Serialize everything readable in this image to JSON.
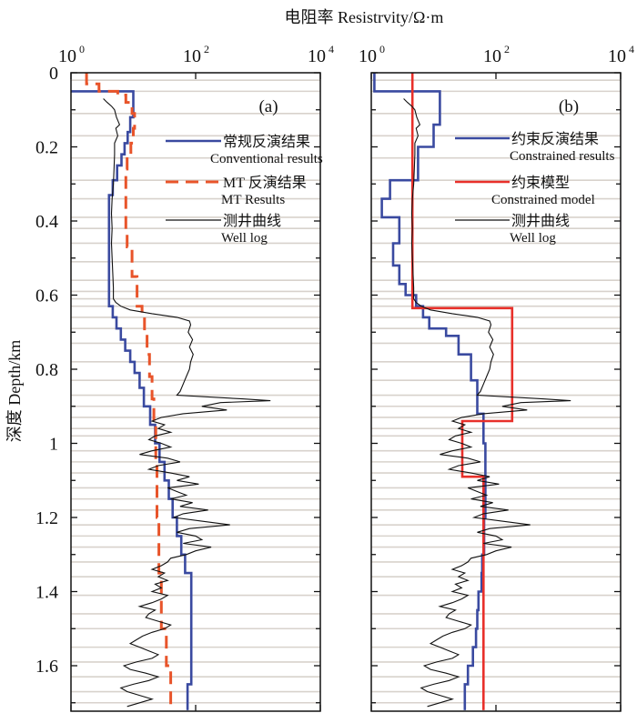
{
  "chart_data": [
    {
      "type": "line",
      "panel_label": "(a)",
      "title": "电阻率 Resistrvity/Ω·m",
      "xlabel": "电阻率 Resistrvity/Ω·m",
      "ylabel": "深度 Depth/km",
      "xscale": "log",
      "xlim": [
        1,
        10000
      ],
      "ylim": [
        0,
        1.72
      ],
      "y_inverted": true,
      "x_ticks": [
        {
          "label": "10",
          "exp": "0",
          "value": 1
        },
        {
          "label": "10",
          "exp": "2",
          "value": 100
        },
        {
          "label": "10",
          "exp": "4",
          "value": 10000
        }
      ],
      "y_ticks": [
        "0",
        "0.2",
        "0.4",
        "0.6",
        "0.8",
        "1",
        "1.2",
        "1.4",
        "1.6"
      ],
      "y_tick_values": [
        0,
        0.2,
        0.4,
        0.6,
        0.8,
        1.0,
        1.2,
        1.4,
        1.6
      ],
      "layer_boundaries": [
        0.02,
        0.05,
        0.11,
        0.17,
        0.23,
        0.29,
        0.34,
        0.39,
        0.42,
        0.46,
        0.51,
        0.56,
        0.59,
        0.61,
        0.63,
        0.66,
        0.69,
        0.73,
        0.78,
        0.83,
        0.87,
        0.9,
        0.93,
        0.96,
        0.98,
        1.02,
        1.05,
        1.08,
        1.12,
        1.15,
        1.18,
        1.22,
        1.25,
        1.28,
        1.32,
        1.36,
        1.41,
        1.46,
        1.5,
        1.55,
        1.59,
        1.63,
        1.67,
        1.7
      ],
      "legend": [
        {
          "label_cn": "常规反演结果",
          "label_en": "Conventional results",
          "color": "#3a4aa0",
          "style": "solid"
        },
        {
          "label_cn": "MT 反演结果",
          "label_en": "MT Results",
          "color": "#e8542a",
          "style": "dashed"
        },
        {
          "label_cn": "测井曲线",
          "label_en": "Well log",
          "color": "#111111",
          "style": "thin"
        }
      ],
      "legend_position": "upper-right",
      "series": [
        {
          "name": "Conventional results",
          "color": "#3a4aa0",
          "kind": "step",
          "depth": [
            0.05,
            0.12,
            0.16,
            0.19,
            0.22,
            0.25,
            0.29,
            0.33,
            0.6,
            0.63,
            0.66,
            0.69,
            0.72,
            0.75,
            0.78,
            0.81,
            0.85,
            0.9,
            0.95,
            1.0,
            1.05,
            1.1,
            1.15,
            1.2,
            1.25,
            1.3,
            1.35,
            1.65,
            1.72
          ],
          "log10_resistivity": [
            1.0,
            0.95,
            0.91,
            0.86,
            0.81,
            0.74,
            0.67,
            0.61,
            0.61,
            0.67,
            0.73,
            0.8,
            0.87,
            0.95,
            1.02,
            1.1,
            1.17,
            1.27,
            1.35,
            1.42,
            1.5,
            1.57,
            1.63,
            1.7,
            1.77,
            1.83,
            1.93,
            1.87,
            1.87
          ]
        },
        {
          "name": "MT Results",
          "color": "#e8542a",
          "kind": "step",
          "depth": [
            0.0,
            0.03,
            0.05,
            0.06,
            0.08,
            0.11,
            0.15,
            0.19,
            0.22,
            0.26,
            0.43,
            0.47,
            0.55,
            0.63,
            0.66,
            0.7,
            0.76,
            0.82,
            0.88,
            0.95,
            1.05,
            1.2,
            1.35,
            1.5,
            1.6,
            1.72
          ],
          "log10_resistivity": [
            0.25,
            0.45,
            0.75,
            0.88,
            0.98,
            1.02,
            1.0,
            0.96,
            0.9,
            0.88,
            0.9,
            0.98,
            1.06,
            1.14,
            1.18,
            1.22,
            1.26,
            1.3,
            1.33,
            1.36,
            1.38,
            1.41,
            1.45,
            1.53,
            1.6,
            1.63
          ]
        },
        {
          "name": "Well log",
          "color": "#111111",
          "kind": "line",
          "depth": [
            0.07,
            0.08,
            0.09,
            0.1,
            0.12,
            0.14,
            0.15,
            0.17,
            0.19,
            0.22,
            0.26,
            0.3,
            0.34,
            0.38,
            0.42,
            0.46,
            0.5,
            0.54,
            0.58,
            0.61,
            0.62,
            0.63,
            0.64,
            0.65,
            0.66,
            0.67,
            0.68,
            0.7,
            0.72,
            0.74,
            0.76,
            0.78,
            0.8,
            0.82,
            0.84,
            0.86,
            0.87,
            0.88,
            0.885,
            0.89,
            0.9,
            0.91,
            0.92,
            0.93,
            0.94,
            0.95,
            0.96,
            0.97,
            0.98,
            0.99,
            1.0,
            1.01,
            1.02,
            1.03,
            1.04,
            1.05,
            1.06,
            1.07,
            1.08,
            1.09,
            1.1,
            1.11,
            1.12,
            1.13,
            1.14,
            1.15,
            1.16,
            1.17,
            1.18,
            1.19,
            1.2,
            1.21,
            1.22,
            1.23,
            1.24,
            1.25,
            1.26,
            1.27,
            1.28,
            1.29,
            1.3,
            1.31,
            1.32,
            1.33,
            1.34,
            1.35,
            1.36,
            1.37,
            1.38,
            1.39,
            1.4,
            1.41,
            1.42,
            1.43,
            1.44,
            1.45,
            1.46,
            1.47,
            1.48,
            1.49,
            1.5,
            1.51,
            1.52,
            1.53,
            1.54,
            1.55,
            1.56,
            1.57,
            1.58,
            1.59,
            1.6,
            1.61,
            1.62,
            1.63,
            1.64,
            1.65,
            1.66,
            1.67,
            1.68,
            1.69,
            1.7,
            1.71
          ],
          "log10_resistivity": [
            0.52,
            0.58,
            0.65,
            0.7,
            0.73,
            0.78,
            0.72,
            0.75,
            0.7,
            0.7,
            0.69,
            0.68,
            0.66,
            0.65,
            0.66,
            0.65,
            0.66,
            0.67,
            0.68,
            0.68,
            0.72,
            0.8,
            0.95,
            1.3,
            1.7,
            1.9,
            1.92,
            1.88,
            1.95,
            1.9,
            1.96,
            1.92,
            1.9,
            1.85,
            1.8,
            1.75,
            1.7,
            2.75,
            3.2,
            2.4,
            2.1,
            2.5,
            1.8,
            1.45,
            1.3,
            1.5,
            1.4,
            1.6,
            1.35,
            1.25,
            1.45,
            1.6,
            1.3,
            1.1,
            1.55,
            1.75,
            1.4,
            1.25,
            1.6,
            1.9,
            1.7,
            2.05,
            1.55,
            1.7,
            1.85,
            1.6,
            1.95,
            1.75,
            2.2,
            1.8,
            1.65,
            2.1,
            2.55,
            1.9,
            1.7,
            2.0,
            2.1,
            1.8,
            2.25,
            2.0,
            1.85,
            1.6,
            1.55,
            1.45,
            1.3,
            1.5,
            1.4,
            1.55,
            1.35,
            1.45,
            1.3,
            1.55,
            1.45,
            1.3,
            1.1,
            1.35,
            1.25,
            1.2,
            1.4,
            1.6,
            1.5,
            1.3,
            1.15,
            1.05,
            0.95,
            1.1,
            1.25,
            1.4,
            1.3,
            1.05,
            0.85,
            0.95,
            1.2,
            1.4,
            1.25,
            1.0,
            0.8,
            0.9,
            1.1,
            1.3,
            1.1,
            0.9,
            1.1
          ]
        }
      ]
    },
    {
      "type": "line",
      "panel_label": "(b)",
      "xscale": "log",
      "xlim": [
        1,
        10000
      ],
      "ylim": [
        0,
        1.72
      ],
      "y_inverted": true,
      "x_ticks": [
        {
          "label": "10",
          "exp": "0",
          "value": 1
        },
        {
          "label": "10",
          "exp": "2",
          "value": 100
        },
        {
          "label": "10",
          "exp": "4",
          "value": 10000
        }
      ],
      "layer_boundaries": [
        0.02,
        0.05,
        0.11,
        0.17,
        0.23,
        0.29,
        0.34,
        0.39,
        0.42,
        0.46,
        0.51,
        0.56,
        0.59,
        0.61,
        0.63,
        0.66,
        0.69,
        0.73,
        0.78,
        0.83,
        0.87,
        0.9,
        0.93,
        0.96,
        0.98,
        1.02,
        1.05,
        1.08,
        1.12,
        1.15,
        1.18,
        1.22,
        1.25,
        1.28,
        1.32,
        1.36,
        1.41,
        1.46,
        1.5,
        1.55,
        1.59,
        1.63,
        1.67,
        1.7
      ],
      "legend": [
        {
          "label_cn": "约束反演结果",
          "label_en": "Constrained results",
          "color": "#3a4aa0",
          "style": "solid"
        },
        {
          "label_cn": "约束模型",
          "label_en": "Constrained model",
          "color": "#e8302a",
          "style": "solid"
        },
        {
          "label_cn": "测井曲线",
          "label_en": "Well log",
          "color": "#111111",
          "style": "thin"
        }
      ],
      "legend_position": "upper-right",
      "series": [
        {
          "name": "Constrained results",
          "color": "#3a4aa0",
          "kind": "step",
          "depth": [
            0.0,
            0.05,
            0.14,
            0.2,
            0.29,
            0.34,
            0.39,
            0.46,
            0.52,
            0.57,
            0.6,
            0.63,
            0.66,
            0.69,
            0.71,
            0.76,
            0.83,
            0.92,
            1.0,
            1.2,
            1.3,
            1.35,
            1.4,
            1.45,
            1.5,
            1.55,
            1.6,
            1.65,
            1.72
          ],
          "log10_resistivity": [
            0.05,
            1.1,
            1.0,
            0.75,
            0.3,
            0.17,
            0.45,
            0.35,
            0.45,
            0.55,
            0.72,
            0.83,
            0.93,
            1.2,
            1.4,
            1.6,
            1.7,
            1.8,
            1.83,
            1.81,
            1.78,
            1.77,
            1.72,
            1.7,
            1.68,
            1.63,
            1.55,
            1.5,
            1.5
          ]
        },
        {
          "name": "Constrained model",
          "color": "#e8302a",
          "kind": "step",
          "depth": [
            0.0,
            0.635,
            0.94,
            1.09,
            1.72
          ],
          "log10_resistivity": [
            0.66,
            2.26,
            1.46,
            1.8,
            1.8
          ]
        },
        {
          "name": "Well log",
          "color": "#111111",
          "kind": "line",
          "ref": "same as panel (a) well log"
        }
      ]
    }
  ]
}
